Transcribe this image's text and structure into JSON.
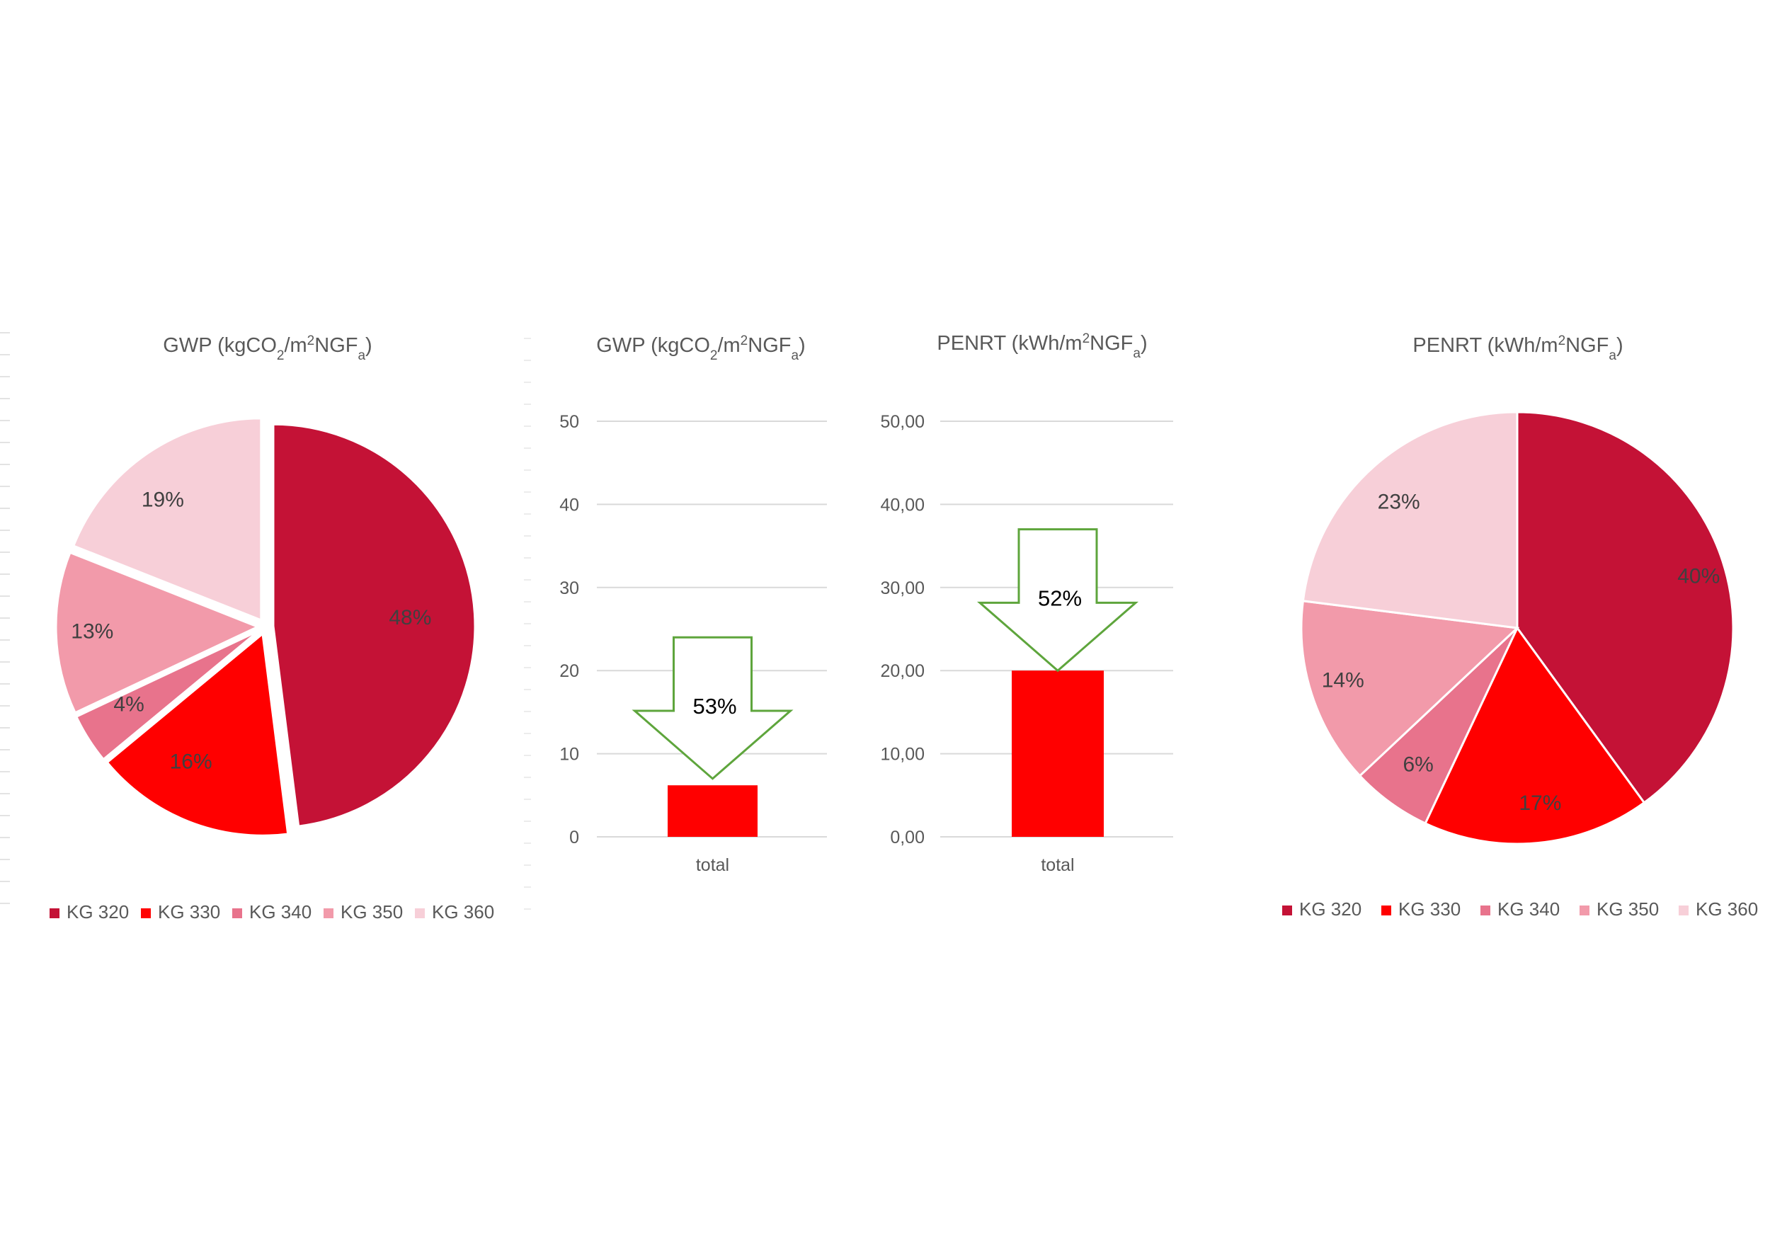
{
  "colors": {
    "kg320": "#c41236",
    "kg330": "#ff0000",
    "kg340": "#e8738c",
    "kg350": "#f29aaa",
    "kg360": "#f7cfd8",
    "bar": "#ff0000",
    "arrow": "#5ea53c",
    "grid": "#d9d9d9",
    "text": "#595959"
  },
  "chart_data": [
    {
      "type": "pie",
      "title_parts": [
        "GWP (kgCO",
        "2",
        "/m",
        "2",
        "NGF",
        "a",
        ")"
      ],
      "categories": [
        "KG 320",
        "KG 330",
        "KG 340",
        "KG 350",
        "KG 360"
      ],
      "values": [
        48,
        16,
        4,
        13,
        19
      ],
      "data_labels": [
        "48%",
        "16%",
        "4%",
        "13%",
        "19%"
      ],
      "exploded": true,
      "legend_position": "bottom"
    },
    {
      "type": "bar",
      "title_parts": [
        "GWP (kgCO",
        "2",
        "/m",
        "2",
        "NGF",
        "a",
        ")"
      ],
      "categories": [
        "total"
      ],
      "values": [
        6.2
      ],
      "ylim": [
        0,
        50
      ],
      "yticks": [
        "0",
        "10",
        "20",
        "30",
        "40",
        "50"
      ],
      "grid": true,
      "annotation": {
        "type": "down-arrow",
        "label": "53%",
        "from": 24,
        "to": 7
      }
    },
    {
      "type": "bar",
      "title_parts": [
        "PENRT (kWh/m",
        "2",
        "NGF",
        "a",
        ")"
      ],
      "categories": [
        "total"
      ],
      "values": [
        20
      ],
      "ylim": [
        0,
        50
      ],
      "yticks": [
        "0,00",
        "10,00",
        "20,00",
        "30,00",
        "40,00",
        "50,00"
      ],
      "grid": true,
      "annotation": {
        "type": "down-arrow",
        "label": "52%",
        "from": 37,
        "to": 20
      }
    },
    {
      "type": "pie",
      "title_parts": [
        "PENRT (kWh/m",
        "2",
        "NGF",
        "a",
        ")"
      ],
      "categories": [
        "KG 320",
        "KG 330",
        "KG 340",
        "KG 350",
        "KG 360"
      ],
      "values": [
        40,
        17,
        6,
        14,
        23
      ],
      "data_labels": [
        "40%",
        "17%",
        "6%",
        "14%",
        "23%"
      ],
      "exploded": false,
      "legend_position": "bottom"
    }
  ]
}
